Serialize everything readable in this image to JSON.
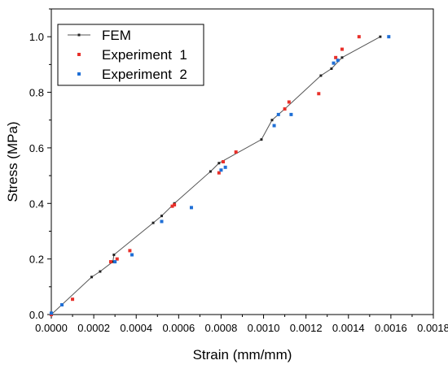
{
  "chart_data": {
    "type": "scatter",
    "xlabel": "Strain (mm/mm)",
    "ylabel": "Stress (MPa)",
    "xlim": [
      0.0,
      0.0018
    ],
    "ylim": [
      0.0,
      1.1
    ],
    "xticks": [
      "0.0000",
      "0.0002",
      "0.0004",
      "0.0006",
      "0.0008",
      "0.0010",
      "0.0012",
      "0.0014",
      "0.0016",
      "0.0018"
    ],
    "yticks": [
      "0.0",
      "0.2",
      "0.4",
      "0.6",
      "0.8",
      "1.0"
    ],
    "legend_position": "top-left",
    "series": [
      {
        "name": "FEM",
        "style": "line-with-markers",
        "color": "#555555",
        "marker_color": "#222222",
        "points": [
          [
            0.0,
            0.0
          ],
          [
            0.00019,
            0.135
          ],
          [
            0.00023,
            0.155
          ],
          [
            0.00029,
            0.19
          ],
          [
            0.000295,
            0.215
          ],
          [
            0.00048,
            0.33
          ],
          [
            0.00052,
            0.355
          ],
          [
            0.00058,
            0.4
          ],
          [
            0.00075,
            0.515
          ],
          [
            0.00079,
            0.545
          ],
          [
            0.00099,
            0.63
          ],
          [
            0.00104,
            0.7
          ],
          [
            0.0011,
            0.74
          ],
          [
            0.00127,
            0.86
          ],
          [
            0.00132,
            0.885
          ],
          [
            0.00137,
            0.925
          ],
          [
            0.00155,
            1.0
          ]
        ]
      },
      {
        "name": "Experiment  1",
        "style": "markers",
        "color": "#e8302a",
        "points": [
          [
            0.0,
            0.0
          ],
          [
            0.0001,
            0.055
          ],
          [
            0.00028,
            0.19
          ],
          [
            0.00031,
            0.2
          ],
          [
            0.00037,
            0.23
          ],
          [
            0.00057,
            0.39
          ],
          [
            0.00058,
            0.395
          ],
          [
            0.00079,
            0.51
          ],
          [
            0.00081,
            0.55
          ],
          [
            0.00087,
            0.585
          ],
          [
            0.0011,
            0.74
          ],
          [
            0.00112,
            0.765
          ],
          [
            0.00126,
            0.795
          ],
          [
            0.00134,
            0.925
          ],
          [
            0.00137,
            0.955
          ],
          [
            0.00145,
            1.0
          ]
        ]
      },
      {
        "name": "Experiment  2",
        "style": "markers",
        "color": "#1f6fd6",
        "points": [
          [
            0.0,
            0.005
          ],
          [
            5e-05,
            0.035
          ],
          [
            0.0003,
            0.19
          ],
          [
            0.00038,
            0.215
          ],
          [
            0.00052,
            0.335
          ],
          [
            0.00066,
            0.385
          ],
          [
            0.0008,
            0.52
          ],
          [
            0.00082,
            0.53
          ],
          [
            0.00105,
            0.68
          ],
          [
            0.00107,
            0.72
          ],
          [
            0.00113,
            0.72
          ],
          [
            0.00133,
            0.905
          ],
          [
            0.00135,
            0.915
          ],
          [
            0.00159,
            1.0
          ]
        ]
      }
    ]
  }
}
